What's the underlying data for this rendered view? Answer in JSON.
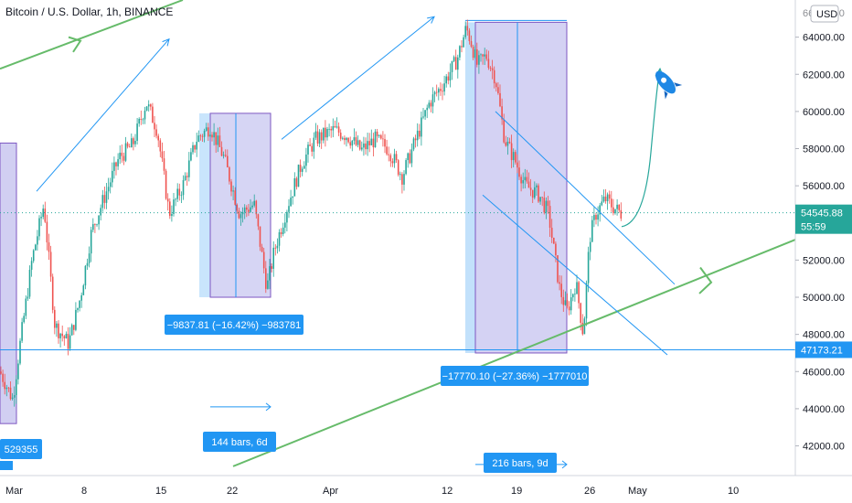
{
  "header": {
    "title": "Bitcoin / U.S. Dollar, 1h, BINANCE"
  },
  "chart_data": {
    "type": "candlestick",
    "currency_label": "USD",
    "ylim": [
      40500,
      66000
    ],
    "y_ticks": [
      42000,
      44000,
      46000,
      48000,
      50000,
      52000,
      54000,
      56000,
      58000,
      60000,
      62000,
      64000
    ],
    "y_tick_labels": [
      "42000.00",
      "44000.00",
      "46000.00",
      "48000.00",
      "50000.00",
      "52000.00",
      "54000.00",
      "56000.00",
      "58000.00",
      "60000.00",
      "62000.00",
      "64000.00"
    ],
    "x_ticks": [
      "Mar",
      "8",
      "15",
      "22",
      "Apr",
      "12",
      "19",
      "26",
      "May",
      "10"
    ],
    "price_path": [
      [
        0,
        46000
      ],
      [
        14,
        44500
      ],
      [
        22,
        47500
      ],
      [
        35,
        52000
      ],
      [
        48,
        55000
      ],
      [
        60,
        48500
      ],
      [
        75,
        47500
      ],
      [
        88,
        50000
      ],
      [
        100,
        53500
      ],
      [
        115,
        55500
      ],
      [
        130,
        57500
      ],
      [
        145,
        58200
      ],
      [
        160,
        60500
      ],
      [
        172,
        59000
      ],
      [
        185,
        54500
      ],
      [
        200,
        56000
      ],
      [
        215,
        58500
      ],
      [
        230,
        59200
      ],
      [
        245,
        57500
      ],
      [
        262,
        54500
      ],
      [
        278,
        55000
      ],
      [
        292,
        50500
      ],
      [
        300,
        52500
      ],
      [
        315,
        55000
      ],
      [
        330,
        57200
      ],
      [
        345,
        58500
      ],
      [
        365,
        59000
      ],
      [
        380,
        58700
      ],
      [
        395,
        57900
      ],
      [
        410,
        58500
      ],
      [
        425,
        58000
      ],
      [
        440,
        56500
      ],
      [
        455,
        58500
      ],
      [
        470,
        60500
      ],
      [
        485,
        61500
      ],
      [
        500,
        62800
      ],
      [
        510,
        64500
      ],
      [
        515,
        63800
      ],
      [
        522,
        62500
      ],
      [
        532,
        63000
      ],
      [
        542,
        61800
      ],
      [
        552,
        58500
      ],
      [
        562,
        57500
      ],
      [
        575,
        56000
      ],
      [
        590,
        55500
      ],
      [
        600,
        54500
      ],
      [
        612,
        50500
      ],
      [
        620,
        49200
      ],
      [
        630,
        50800
      ],
      [
        638,
        48000
      ],
      [
        645,
        53200
      ],
      [
        652,
        54500
      ],
      [
        662,
        55300
      ],
      [
        672,
        54800
      ],
      [
        680,
        54500
      ]
    ],
    "current_price": {
      "value": 54545.88,
      "label": "54545.88",
      "countdown": "55:59"
    },
    "horizontal_line": {
      "value": 47173.21,
      "label": "47173.21"
    },
    "measurements": [
      {
        "label": "−9837.81 (−16.42%) −983781"
      },
      {
        "label": "−17770.10 (−27.36%) −1777010"
      },
      {
        "label": "529355"
      }
    ],
    "date_ranges": [
      {
        "label": "144 bars, 6d"
      },
      {
        "label": "216 bars, 9d"
      }
    ],
    "annotations": [
      "rocket-icon",
      "projection-arrow"
    ],
    "colors": {
      "up": "#26a69a",
      "down": "#ef5350",
      "label_bg": "#2196f3",
      "trend_line": "#66bb6a",
      "arrow": "#2196f3",
      "box_fill": "#c5c3ef",
      "box_border": "#7e57c2",
      "hline": "#2196f3",
      "price_label": "#26a69a"
    }
  }
}
